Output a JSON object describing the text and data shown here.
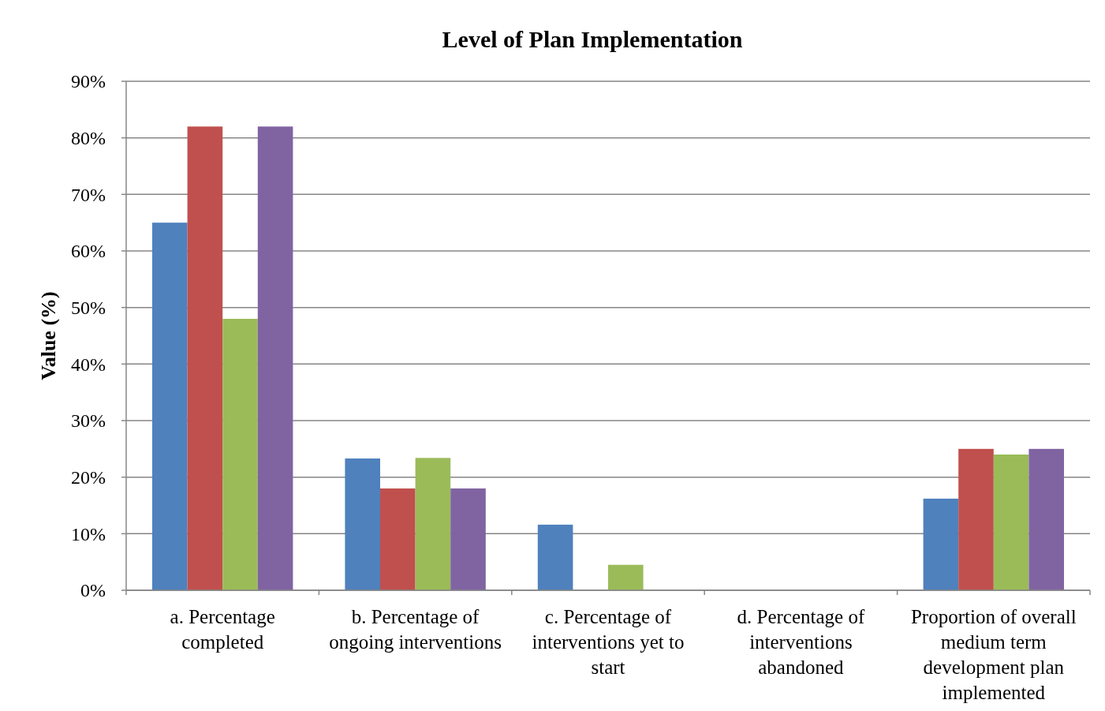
{
  "chart_data": {
    "type": "bar",
    "title": "Level of Plan Implementation",
    "ylabel": "Value (%)",
    "categories": [
      "a. Percentage completed",
      "b. Percentage of ongoing interventions",
      "c. Percentage of interventions yet to start",
      "d. Percentage of interventions abandoned",
      "Proportion of overall medium term development plan implemented"
    ],
    "series": [
      {
        "color": "#4f81bd",
        "values": [
          65,
          23.3,
          11.6,
          0,
          16.2
        ]
      },
      {
        "color": "#c0504d",
        "values": [
          82,
          18,
          0,
          0,
          25
        ]
      },
      {
        "color": "#9bbb59",
        "values": [
          48,
          23.4,
          4.5,
          0,
          24
        ]
      },
      {
        "color": "#8064a2",
        "values": [
          82,
          18,
          0,
          0,
          25
        ]
      }
    ],
    "ylim": [
      0,
      90
    ],
    "yticks": [
      {
        "value": 0,
        "label": "0%"
      },
      {
        "value": 10,
        "label": "10%"
      },
      {
        "value": 20,
        "label": "20%"
      },
      {
        "value": 30,
        "label": "30%"
      },
      {
        "value": 40,
        "label": "40%"
      },
      {
        "value": 50,
        "label": "50%"
      },
      {
        "value": 60,
        "label": "60%"
      },
      {
        "value": 70,
        "label": "70%"
      },
      {
        "value": 80,
        "label": "80%"
      },
      {
        "value": 90,
        "label": "90%"
      }
    ],
    "grid": "y"
  }
}
